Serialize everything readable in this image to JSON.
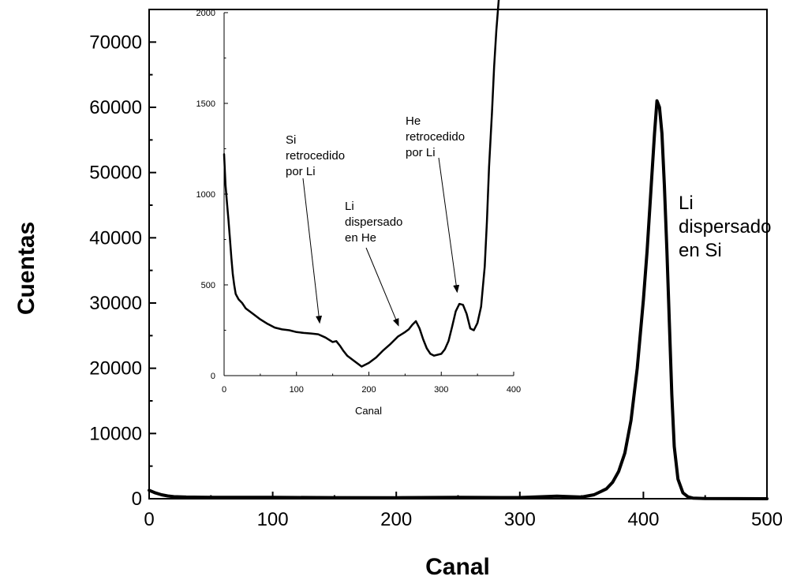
{
  "chart_data": [
    {
      "id": "main",
      "type": "line",
      "title": "",
      "xlabel": "Canal",
      "ylabel": "Cuentas",
      "xlim": [
        0,
        500
      ],
      "ylim": [
        0,
        75000
      ],
      "xticks": [
        0,
        100,
        200,
        300,
        400,
        500
      ],
      "yticks": [
        0,
        10000,
        20000,
        30000,
        40000,
        50000,
        60000,
        70000
      ],
      "grid": false,
      "series": [
        {
          "x": [
            0,
            5,
            10,
            15,
            20,
            30,
            50,
            100,
            150,
            200,
            250,
            300,
            330,
            350,
            360,
            370,
            375,
            380,
            385,
            390,
            395,
            400,
            403,
            406,
            409,
            411,
            413,
            415,
            417,
            419,
            421,
            423,
            425,
            428,
            432,
            436,
            440,
            450,
            500
          ],
          "y": [
            1300,
            900,
            600,
            420,
            320,
            260,
            220,
            200,
            170,
            160,
            200,
            180,
            400,
            250,
            600,
            1500,
            2500,
            4200,
            7000,
            12000,
            20000,
            30500,
            38000,
            47000,
            56000,
            61000,
            60000,
            56000,
            48000,
            38000,
            27000,
            16000,
            8000,
            3000,
            900,
            300,
            100,
            30,
            0
          ]
        }
      ],
      "annotations": [
        {
          "lines": [
            "Li",
            "dispersado",
            "en Si"
          ]
        }
      ]
    },
    {
      "id": "inset",
      "type": "line",
      "title": "",
      "xlabel": "Canal",
      "ylabel": "",
      "xlim": [
        0,
        400
      ],
      "ylim": [
        0,
        2000
      ],
      "xticks": [
        0,
        100,
        200,
        300,
        400
      ],
      "yticks": [
        0,
        500,
        1000,
        1500,
        2000
      ],
      "grid": false,
      "series": [
        {
          "x": [
            0,
            2,
            4,
            6,
            8,
            10,
            12,
            14,
            16,
            20,
            25,
            30,
            40,
            50,
            60,
            70,
            80,
            90,
            100,
            110,
            120,
            130,
            140,
            150,
            155,
            160,
            165,
            170,
            180,
            190,
            200,
            210,
            220,
            230,
            240,
            250,
            255,
            260,
            265,
            270,
            275,
            280,
            285,
            290,
            300,
            305,
            310,
            315,
            320,
            325,
            330,
            335,
            340,
            345,
            350,
            355,
            360,
            363,
            366,
            370,
            373,
            376,
            378,
            380
          ],
          "y": [
            1220,
            1050,
            950,
            860,
            760,
            650,
            560,
            500,
            450,
            420,
            400,
            370,
            340,
            310,
            285,
            265,
            255,
            250,
            240,
            235,
            232,
            228,
            210,
            185,
            190,
            165,
            135,
            110,
            80,
            50,
            70,
            100,
            140,
            175,
            215,
            240,
            255,
            280,
            300,
            260,
            200,
            150,
            120,
            110,
            120,
            145,
            190,
            270,
            355,
            395,
            390,
            340,
            260,
            250,
            290,
            380,
            600,
            850,
            1150,
            1450,
            1700,
            1900,
            2000,
            2100
          ]
        }
      ],
      "annotations": [
        {
          "lines": [
            "Si",
            "retrocedido",
            "por Li"
          ],
          "arrow_to": [
            132,
            290
          ]
        },
        {
          "lines": [
            "Li",
            "dispersado",
            "en He"
          ],
          "arrow_to": [
            241,
            275
          ]
        },
        {
          "lines": [
            "He",
            "retrocedido",
            "por Li"
          ],
          "arrow_to": [
            322,
            460
          ]
        }
      ]
    }
  ]
}
